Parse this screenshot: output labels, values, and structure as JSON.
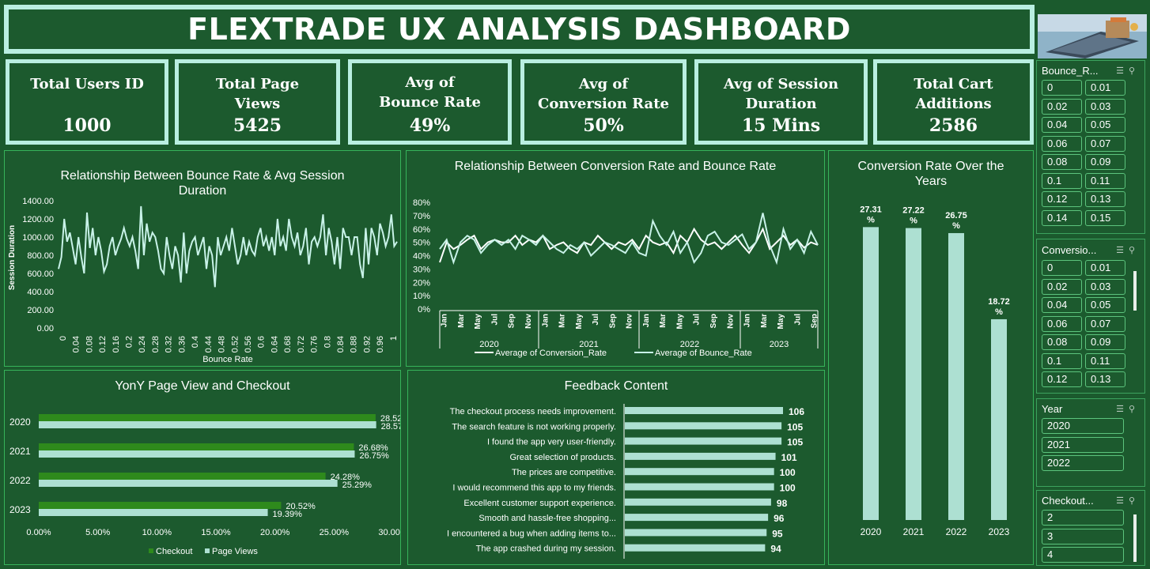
{
  "title": "FLEXTRADE UX ANALYSIS DASHBOARD",
  "kpis": [
    {
      "label": "Total Users ID",
      "value": "1000"
    },
    {
      "label": "Total Page Views",
      "value": "5425"
    },
    {
      "label": "Avg of Bounce Rate",
      "value": "49%"
    },
    {
      "label": "Avg of Conversion Rate",
      "value": "50%"
    },
    {
      "label": "Avg  of Session Duration",
      "value": "15 Mins"
    },
    {
      "label": "Total Cart Additions",
      "value": "2586"
    }
  ],
  "slicers": {
    "bounce": {
      "title": "Bounce_R...",
      "items": [
        "0",
        "0.01",
        "0.02",
        "0.03",
        "0.04",
        "0.05",
        "0.06",
        "0.07",
        "0.08",
        "0.09",
        "0.1",
        "0.11",
        "0.12",
        "0.13",
        "0.14",
        "0.15"
      ]
    },
    "conversion": {
      "title": "Conversio...",
      "items": [
        "0",
        "0.01",
        "0.02",
        "0.03",
        "0.04",
        "0.05",
        "0.06",
        "0.07",
        "0.08",
        "0.09",
        "0.1",
        "0.11",
        "0.12",
        "0.13"
      ]
    },
    "year": {
      "title": "Year",
      "items": [
        "2020",
        "2021",
        "2022"
      ]
    },
    "checkout": {
      "title": "Checkout...",
      "items": [
        "2",
        "3",
        "4"
      ]
    }
  },
  "colors": {
    "background": "#1b5a2d",
    "card_border": "#b9efe1",
    "bar_light": "#ade0d2",
    "bar_green": "#2e8a1c",
    "line": "#c8f2e8"
  },
  "chart_data": [
    {
      "type": "line",
      "title": "Relationship Between Bounce Rate & Avg Session Duration",
      "xlabel": "Bounce Rate",
      "ylabel": "Session Duration",
      "ylim": [
        0,
        1400
      ],
      "yticks": [
        "0.00",
        "200.00",
        "400.00",
        "600.00",
        "800.00",
        "1000.00",
        "1200.00",
        "1400.00"
      ],
      "xticks": [
        "0",
        "0.04",
        "0.08",
        "0.12",
        "0.16",
        "0.2",
        "0.24",
        "0.28",
        "0.32",
        "0.36",
        "0.4",
        "0.44",
        "0.48",
        "0.52",
        "0.56",
        "0.6",
        "0.64",
        "0.68",
        "0.72",
        "0.76",
        "0.8",
        "0.84",
        "0.88",
        "0.92",
        "0.96",
        "1"
      ],
      "values": [
        650,
        780,
        1200,
        950,
        1050,
        880,
        700,
        1000,
        780,
        600,
        1270,
        880,
        1100,
        800,
        1000,
        850,
        620,
        700,
        900,
        1000,
        800,
        900,
        980,
        1100,
        980,
        900,
        1000,
        850,
        650,
        1340,
        800,
        1150,
        950,
        1050,
        1000,
        850,
        650,
        600,
        1000,
        800,
        650,
        900,
        800,
        500,
        1050,
        600,
        850,
        950,
        1000,
        800,
        900,
        1000,
        650,
        900,
        800,
        450,
        1000,
        800,
        900,
        1000,
        850,
        1100,
        900,
        700,
        800,
        1000,
        800,
        950,
        850,
        800,
        1000,
        1100,
        900,
        1000,
        850,
        1000,
        800,
        1200,
        900,
        1000,
        850,
        1200,
        1000,
        900,
        1050,
        800,
        900,
        1100,
        700,
        950,
        1000,
        900,
        1000,
        1250,
        800,
        1100,
        950,
        700,
        1000,
        650,
        1100,
        1000,
        1000,
        800,
        1000,
        1000,
        700,
        550,
        1100,
        700,
        1100,
        1000,
        800,
        1150,
        1050,
        900,
        1000,
        1250,
        900,
        950
      ]
    },
    {
      "type": "line",
      "title": "Relationship Between Conversion Rate and Bounce Rate",
      "ylim": [
        0,
        80
      ],
      "yticks": [
        "0%",
        "10%",
        "20%",
        "30%",
        "40%",
        "50%",
        "60%",
        "70%",
        "80%"
      ],
      "month_ticks": [
        "Jan",
        "Mar",
        "May",
        "Jul",
        "Sep",
        "Nov",
        "Jan",
        "Mar",
        "May",
        "Jul",
        "Sep",
        "Nov",
        "Jan",
        "Mar",
        "May",
        "Jul",
        "Sep",
        "Nov",
        "Jan",
        "Mar",
        "May",
        "Jul",
        "Sep"
      ],
      "years": [
        "2020",
        "2021",
        "2022",
        "2023"
      ],
      "series": [
        {
          "name": "Average of Conversion_Rate",
          "values": [
            35,
            50,
            45,
            48,
            52,
            55,
            45,
            50,
            52,
            50,
            50,
            55,
            48,
            52,
            50,
            55,
            45,
            48,
            50,
            45,
            42,
            50,
            48,
            55,
            50,
            45,
            50,
            48,
            52,
            45,
            55,
            50,
            48,
            50,
            42,
            55,
            50,
            60,
            52,
            48,
            50,
            45,
            50,
            55,
            48,
            42,
            50,
            60,
            45,
            50,
            55,
            48,
            52,
            46,
            50,
            48
          ]
        },
        {
          "name": "Average of Bounce_Rate",
          "values": [
            45,
            52,
            35,
            50,
            55,
            52,
            42,
            48,
            52,
            48,
            52,
            45,
            55,
            52,
            48,
            55,
            50,
            45,
            42,
            48,
            45,
            50,
            40,
            45,
            50,
            48,
            45,
            42,
            50,
            42,
            40,
            66,
            55,
            48,
            58,
            42,
            50,
            35,
            42,
            55,
            58,
            50,
            48,
            52,
            56,
            45,
            50,
            72,
            48,
            35,
            60,
            45,
            52,
            42,
            58,
            48
          ]
        }
      ]
    },
    {
      "type": "bar",
      "title": "Conversion Rate Over the Years",
      "categories": [
        "2020",
        "2021",
        "2022",
        "2023"
      ],
      "values": [
        27.31,
        27.22,
        26.75,
        18.72
      ],
      "labels_line1": [
        "27.31",
        "27.22",
        "26.75",
        "18.72"
      ],
      "label_unit": "%",
      "ylim": [
        0,
        28
      ]
    },
    {
      "type": "bar",
      "title": "YonY Page View and Checkout",
      "categories": [
        "2020",
        "2021",
        "2022",
        "2023"
      ],
      "xlim": [
        0,
        30
      ],
      "xticks": [
        "0.00%",
        "5.00%",
        "10.00%",
        "15.00%",
        "20.00%",
        "25.00%",
        "30.00%"
      ],
      "series": [
        {
          "name": "Checkout",
          "values": [
            28.52,
            26.68,
            24.28,
            20.52
          ],
          "labels": [
            "28.52%",
            "26.68%",
            "24.28%",
            "20.52%"
          ]
        },
        {
          "name": "Page Views",
          "values": [
            28.57,
            26.75,
            25.29,
            19.39
          ],
          "labels": [
            "28.57%",
            "26.75%",
            "25.29%",
            "19.39%"
          ]
        }
      ]
    },
    {
      "type": "bar",
      "title": "Feedback Content",
      "categories": [
        "The checkout process needs improvement.",
        "The search feature is not working properly.",
        "I found the app very user-friendly.",
        "Great selection of products.",
        "The prices are competitive.",
        "I would recommend this app to my friends.",
        "Excellent customer support experience.",
        "Smooth and hassle-free shopping...",
        "I encountered a bug when adding items to...",
        "The app crashed during my session."
      ],
      "values": [
        106,
        105,
        105,
        101,
        100,
        100,
        98,
        96,
        95,
        94
      ]
    }
  ]
}
